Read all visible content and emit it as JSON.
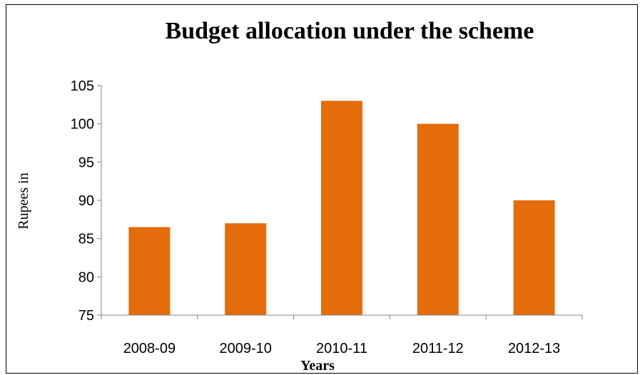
{
  "chart_data": {
    "type": "bar",
    "title": "Budget allocation under the scheme",
    "xlabel": "Years",
    "ylabel": "Rupees in",
    "categories": [
      "2008-09",
      "2009-10",
      "2010-11",
      "2011-12",
      "2012-13"
    ],
    "values": [
      86.5,
      87,
      103,
      100,
      90
    ],
    "ylim": [
      75,
      105
    ],
    "yticks": [
      75,
      80,
      85,
      90,
      95,
      100,
      105
    ],
    "grid": false,
    "legend": "none",
    "bar_color": "#E46C0A"
  }
}
